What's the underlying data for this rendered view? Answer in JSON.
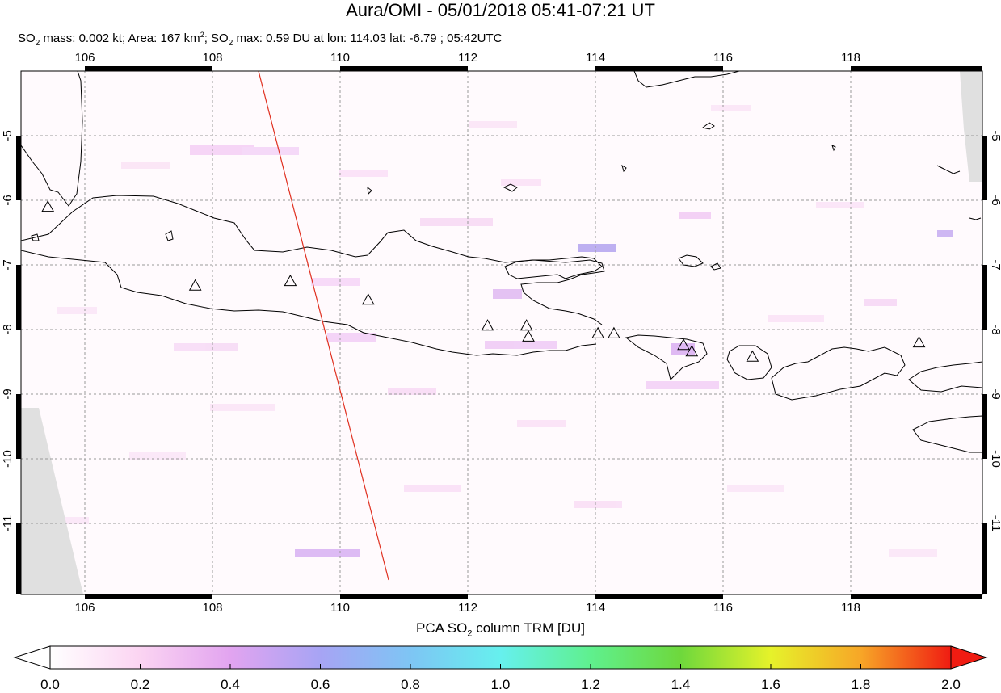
{
  "header": {
    "title": "Aura/OMI - 05/01/2018 05:41-07:21 UT",
    "so2_mass_label": "SO",
    "so2_mass_text": " mass: 0.002 kt; Area: 167 km",
    "area_sup": "2",
    "so2_max_label": "; SO",
    "so2_max_text": " max: 0.59 DU at lon: 114.03 lat: -6.79 ; 05:42UTC",
    "sub2": "2"
  },
  "map": {
    "lon_range": [
      105,
      120
    ],
    "lat_range": [
      -12,
      -4
    ],
    "lon_ticks": [
      "106",
      "108",
      "110",
      "112",
      "114",
      "116",
      "118"
    ],
    "lat_ticks": [
      "-5",
      "-6",
      "-7",
      "-8",
      "-9",
      "-10",
      "-11"
    ],
    "orbit_line_color": "#e03020",
    "volcano_marker": "triangle-icon",
    "volcanoes_lonlat": [
      [
        105.42,
        -6.1
      ],
      [
        107.73,
        -7.32
      ],
      [
        109.22,
        -7.25
      ],
      [
        110.44,
        -7.54
      ],
      [
        112.31,
        -7.94
      ],
      [
        112.92,
        -7.94
      ],
      [
        112.95,
        -8.11
      ],
      [
        114.04,
        -8.06
      ],
      [
        114.29,
        -8.06
      ],
      [
        115.38,
        -8.24
      ],
      [
        115.51,
        -8.34
      ],
      [
        116.46,
        -8.42
      ],
      [
        119.07,
        -8.2
      ]
    ]
  },
  "colorbar": {
    "title_prefix": "PCA SO",
    "title_sub": "2",
    "title_suffix": " column TRM [DU]",
    "ticks": [
      "0.0",
      "0.2",
      "0.4",
      "0.6",
      "0.8",
      "1.0",
      "1.2",
      "1.4",
      "1.6",
      "1.8",
      "2.0"
    ],
    "min": 0.0,
    "max": 2.0,
    "colors": [
      "#ffffff",
      "#fbd4f2",
      "#e2a4f0",
      "#a7a4f4",
      "#7ec5f4",
      "#66f0ee",
      "#5ff08e",
      "#6ed83c",
      "#e6f22a",
      "#f7a627",
      "#f01c12"
    ]
  }
}
